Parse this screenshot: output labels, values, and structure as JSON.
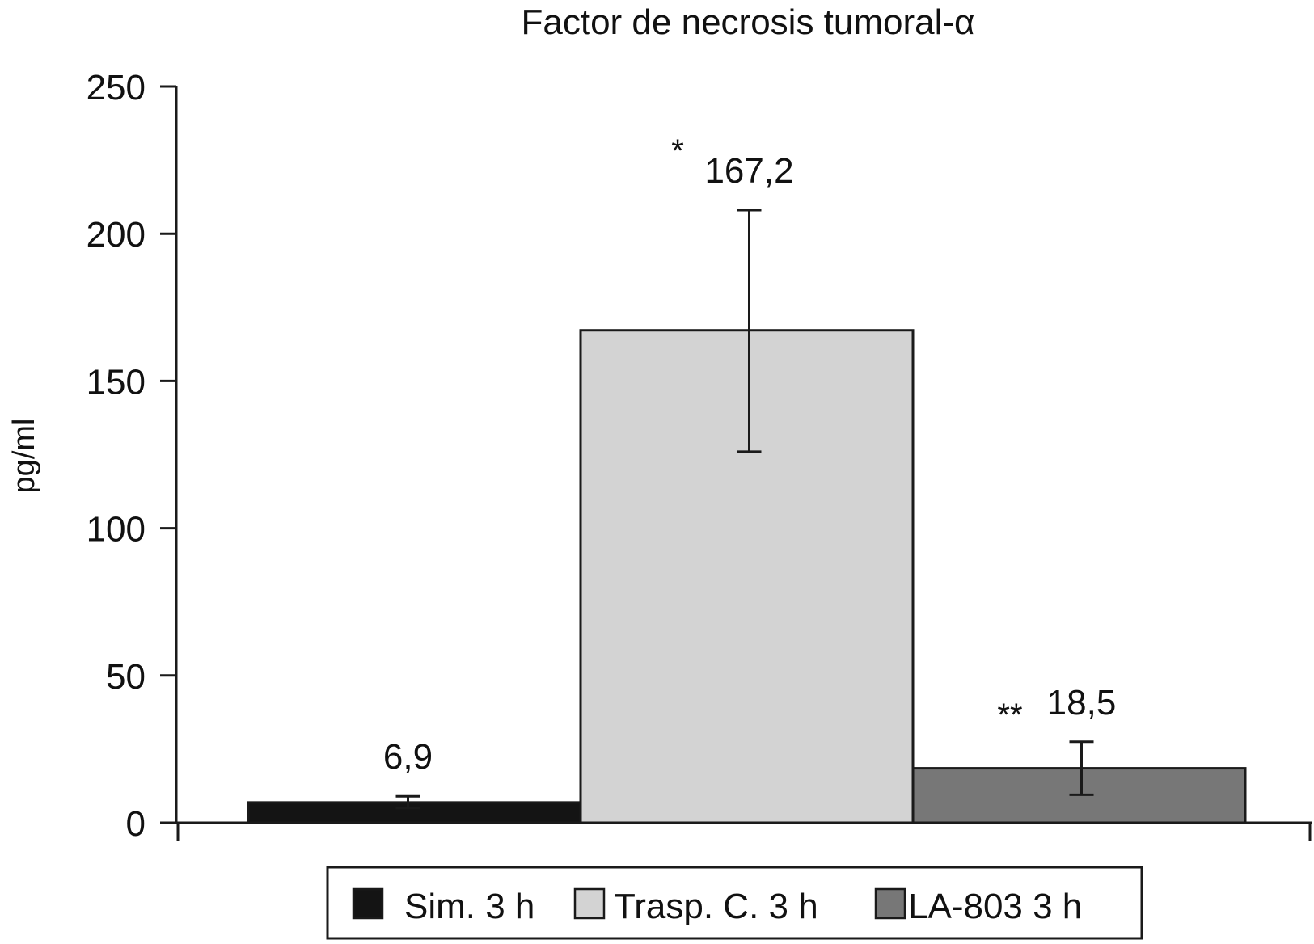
{
  "chart_data": {
    "type": "bar",
    "title": "Factor de necrosis tumoral-α",
    "ylabel": "pg/ml",
    "xlabel": "",
    "ylim": [
      0,
      250
    ],
    "yticks": [
      0,
      50,
      100,
      150,
      200,
      250
    ],
    "grid": false,
    "legend_position": "bottom",
    "categories": [
      "Sim. 3 h",
      "Trasp. C. 3 h",
      "LA-803 3 h"
    ],
    "values": [
      6.9,
      167.2,
      18.5
    ],
    "value_labels": [
      "6,9",
      "167,2",
      "18,5"
    ],
    "error_high": [
      9,
      208,
      27.5
    ],
    "error_low": [
      5,
      126,
      9.5
    ],
    "annotations": [
      "",
      "*",
      "**"
    ],
    "colors": [
      "#141414",
      "#d3d3d3",
      "#777777"
    ]
  }
}
